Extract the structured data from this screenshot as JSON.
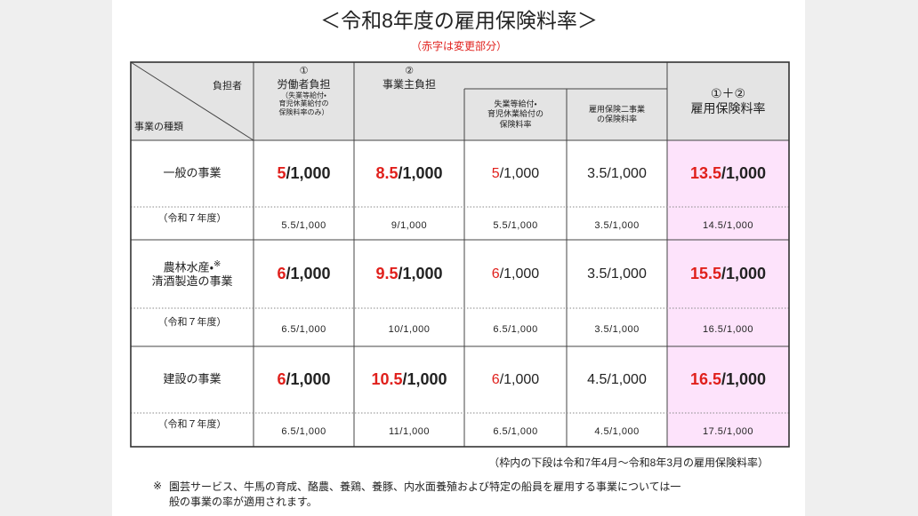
{
  "title": "＜令和8年度の雇用保険料率＞",
  "note": "（赤字は変更部分）",
  "table": {
    "header": {
      "corner_top": "負担者",
      "corner_bottom": "事業の種類",
      "worker": {
        "mark": "①",
        "label": "労働者負担",
        "sub": [
          "（失業等給付・",
          "育児休業給付の",
          "保険料率のみ）"
        ]
      },
      "employer": {
        "mark": "②",
        "label": "事業主負担"
      },
      "employer_unemployment": [
        "失業等給付・",
        "育児休業給付の",
        "保険料率"
      ],
      "employer_two": [
        "雇用保険二事業",
        "の保険料率"
      ],
      "total": {
        "mark": "①＋②",
        "label": "雇用保険料率"
      }
    },
    "rows": [
      {
        "label": [
          "一般の事業"
        ],
        "cells": [
          {
            "red": "5",
            "black": "/1,000"
          },
          {
            "red": "8.5",
            "black": "/1,000"
          },
          {
            "red": "5",
            "black": "/1,000"
          },
          {
            "black": "3.5/1,000"
          },
          {
            "red": "13.5",
            "black": "/1,000"
          }
        ],
        "prev_label": "（令和７年度）",
        "prev": [
          "5.5/1,000",
          "9/1,000",
          "5.5/1,000",
          "3.5/1,000",
          "14.5/1,000"
        ]
      },
      {
        "label": [
          "農林水産・",
          "清酒製造の事業"
        ],
        "label_mark": "※",
        "cells": [
          {
            "red": "6",
            "black": "/1,000"
          },
          {
            "red": "9.5",
            "black": "/1,000"
          },
          {
            "red": "6",
            "black": "/1,000"
          },
          {
            "black": "3.5/1,000"
          },
          {
            "red": "15.5",
            "black": "/1,000"
          }
        ],
        "prev_label": "（令和７年度）",
        "prev": [
          "6.5/1,000",
          "10/1,000",
          "6.5/1,000",
          "3.5/1,000",
          "16.5/1,000"
        ]
      },
      {
        "label": [
          "建設の事業"
        ],
        "cells": [
          {
            "red": "6",
            "black": "/1,000"
          },
          {
            "red": "10.5",
            "black": "/1,000"
          },
          {
            "red": "6",
            "black": "/1,000"
          },
          {
            "black": "4.5/1,000"
          },
          {
            "red": "16.5",
            "black": "/1,000"
          }
        ],
        "prev_label": "（令和７年度）",
        "prev": [
          "6.5/1,000",
          "11/1,000",
          "6.5/1,000",
          "4.5/1,000",
          "17.5/1,000"
        ]
      }
    ]
  },
  "footer": {
    "period_note": "（枠内の下段は令和7年4月～令和8年3月の雇用保険料率）",
    "mark": "※",
    "note": [
      "園芸サービス、牛馬の育成、酪農、養鶏、養豚、内水面養殖および特定の船員を雇用する事業については一",
      "般の事業の率が適用されます。"
    ]
  }
}
